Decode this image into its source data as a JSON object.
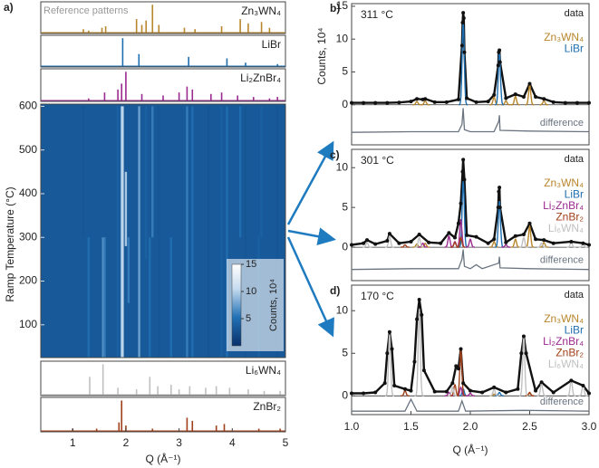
{
  "chart_data": [
    {
      "type": "stick",
      "panel": "a)",
      "subtitle": "Reference patterns",
      "name": "Zn₃WN₄",
      "color": "#b8862b",
      "xlim": [
        0.4,
        5
      ],
      "ylim": [
        0,
        1.1
      ],
      "x": [
        1.2,
        1.3,
        1.55,
        1.62,
        2.2,
        2.3,
        2.38,
        2.5,
        2.62,
        3.1,
        3.3,
        3.8,
        4.15,
        4.3,
        4.55,
        4.7
      ],
      "values": [
        0.15,
        0.1,
        0.2,
        0.25,
        0.5,
        0.3,
        0.45,
        1.0,
        0.3,
        0.2,
        0.15,
        0.25,
        0.5,
        0.35,
        0.4,
        0.2
      ]
    },
    {
      "type": "stick",
      "name": "LiBr",
      "color": "#1f6fb0",
      "xlim": [
        0.4,
        5
      ],
      "ylim": [
        0,
        1.1
      ],
      "x": [
        1.94,
        2.245,
        3.18,
        3.9,
        4.25,
        4.85
      ],
      "values": [
        1.0,
        0.45,
        0.35,
        0.3,
        0.15,
        0.1
      ]
    },
    {
      "type": "stick",
      "name": "Li₂ZnBr₄",
      "color": "#9b2a8f",
      "xlim": [
        0.4,
        5
      ],
      "ylim": [
        0,
        1.1
      ],
      "x": [
        1.3,
        1.6,
        1.85,
        1.92,
        2.0,
        2.3,
        2.7,
        3.0,
        3.15,
        3.25,
        3.6,
        3.8,
        4.1,
        4.4,
        4.7,
        4.85
      ],
      "values": [
        0.1,
        0.3,
        0.4,
        0.6,
        1.0,
        0.25,
        0.2,
        0.3,
        0.5,
        0.4,
        0.25,
        0.3,
        0.2,
        0.15,
        0.1,
        0.15
      ]
    },
    {
      "type": "heatmap",
      "ylabel": "Ramp Temperature (°C)",
      "xlim": [
        0.4,
        5
      ],
      "ylim": [
        25,
        605
      ],
      "yticks": [
        100,
        200,
        300,
        400,
        500,
        600
      ],
      "x": [
        1.2,
        1.3,
        1.57,
        1.6,
        1.85,
        1.92,
        1.94,
        2.0,
        2.05,
        2.25,
        2.38,
        2.45,
        2.5,
        2.62,
        2.85,
        3.15,
        3.25,
        3.55,
        3.8,
        3.9,
        4.15,
        4.25,
        4.5,
        4.55,
        4.85
      ],
      "t_start": [
        300,
        25,
        25,
        25,
        25,
        25,
        25,
        280,
        150,
        25,
        250,
        25,
        300,
        25,
        25,
        25,
        25,
        25,
        25,
        25,
        300,
        25,
        25,
        300,
        25
      ],
      "t_end": [
        600,
        300,
        300,
        300,
        600,
        600,
        600,
        450,
        300,
        600,
        600,
        300,
        600,
        600,
        300,
        600,
        600,
        600,
        600,
        600,
        600,
        600,
        300,
        600,
        600
      ],
      "values": [
        3,
        5,
        7,
        6,
        4,
        9,
        11,
        10,
        6,
        8,
        4,
        5,
        6,
        3,
        5,
        6,
        5,
        3,
        4,
        5,
        5,
        3,
        4,
        4,
        3
      ],
      "colorbar": {
        "label": "Counts, 10⁴",
        "lim": [
          0,
          15
        ],
        "ticks": [
          5,
          10,
          15
        ]
      }
    },
    {
      "type": "stick",
      "name": "Li₆WN₄",
      "color": "#c0c0c0",
      "xlim": [
        0.4,
        5
      ],
      "ylim": [
        0,
        1.1
      ],
      "x": [
        1.32,
        1.57,
        1.85,
        2.2,
        2.45,
        2.6,
        2.85,
        3.0,
        3.2,
        3.5,
        3.7,
        3.95,
        4.3,
        4.6,
        4.9
      ],
      "values": [
        0.6,
        1.0,
        0.25,
        0.2,
        0.6,
        0.3,
        0.35,
        0.2,
        0.3,
        0.25,
        0.3,
        0.25,
        0.2,
        0.15,
        0.15
      ]
    },
    {
      "type": "stick",
      "name": "ZnBr₂",
      "color": "#a0401a",
      "xlim": [
        0.4,
        5
      ],
      "ylim": [
        0,
        1.1
      ],
      "xlabel": "Q (Å⁻¹)",
      "xticks": [
        1,
        2,
        3,
        4,
        5
      ],
      "x": [
        1.0,
        1.45,
        1.87,
        1.92,
        2.0,
        2.5,
        3.15,
        3.25,
        3.7,
        3.85,
        4.5,
        4.9
      ],
      "values": [
        0.1,
        0.1,
        0.3,
        1.0,
        0.2,
        0.1,
        0.45,
        0.35,
        0.2,
        0.25,
        0.1,
        0.1
      ]
    },
    {
      "type": "pattern",
      "panel": "b)",
      "title": "311 °C",
      "ylabel": "Counts, 10⁴",
      "xlim": [
        1.0,
        3.0
      ],
      "ylim": [
        -6.1,
        15.4
      ],
      "yticks": [
        0,
        5,
        10,
        15
      ],
      "data": {
        "name": "data",
        "x": [
          1.0,
          1.1,
          1.2,
          1.3,
          1.4,
          1.5,
          1.55,
          1.6,
          1.62,
          1.7,
          1.8,
          1.9,
          1.93,
          1.935,
          1.94,
          1.945,
          1.95,
          1.97,
          2.05,
          2.15,
          2.2,
          2.235,
          2.24,
          2.245,
          2.25,
          2.3,
          2.38,
          2.45,
          2.5,
          2.55,
          2.62,
          2.7,
          2.8,
          2.9,
          3.0
        ],
        "values": [
          0.3,
          0.3,
          0.3,
          0.3,
          0.35,
          0.5,
          0.9,
          0.8,
          0.9,
          0.4,
          0.4,
          0.8,
          9.0,
          12.5,
          14.0,
          13.2,
          8.0,
          1.0,
          0.4,
          0.5,
          1.5,
          6.0,
          8.0,
          8.3,
          6.5,
          1.0,
          1.6,
          1.2,
          3.2,
          1.2,
          0.9,
          0.4,
          0.3,
          0.3,
          0.3
        ]
      },
      "series": [
        {
          "name": "Zn₃WN₄",
          "color": "#b8862b",
          "x": [
            1.55,
            1.62,
            2.2,
            2.3,
            2.38,
            2.5,
            2.62
          ],
          "values": [
            0.5,
            0.6,
            1.2,
            0.6,
            1.3,
            3.0,
            0.6
          ]
        },
        {
          "name": "LiBr",
          "color": "#1f6fb0",
          "x": [
            1.94,
            2.245
          ],
          "values": [
            12.5,
            8.0
          ]
        }
      ],
      "difference": {
        "name": "difference",
        "x": [
          1.0,
          1.5,
          1.9,
          1.93,
          1.94,
          1.95,
          2.0,
          2.2,
          2.24,
          2.245,
          2.25,
          2.5,
          3.0
        ],
        "values": [
          -4.2,
          -4.1,
          -4.1,
          -3.0,
          -0.5,
          -3.8,
          -4.1,
          -4.1,
          -2.5,
          -1.6,
          -3.9,
          -4.0,
          -4.1
        ]
      }
    },
    {
      "type": "pattern",
      "panel": "c)",
      "title": "301 °C",
      "xlim": [
        1.0,
        3.0
      ],
      "ylim": [
        -4.2,
        12.3
      ],
      "yticks": [
        0,
        5,
        10
      ],
      "data": {
        "name": "data",
        "x": [
          1.0,
          1.1,
          1.13,
          1.2,
          1.3,
          1.32,
          1.4,
          1.5,
          1.57,
          1.65,
          1.75,
          1.82,
          1.87,
          1.9,
          1.92,
          1.935,
          1.94,
          1.95,
          1.97,
          2.05,
          2.15,
          2.2,
          2.235,
          2.24,
          2.245,
          2.25,
          2.3,
          2.38,
          2.45,
          2.5,
          2.55,
          2.62,
          2.7,
          2.85,
          2.95,
          3.0
        ],
        "values": [
          0.3,
          0.5,
          0.9,
          0.4,
          0.8,
          1.7,
          0.5,
          0.7,
          1.6,
          0.6,
          0.5,
          1.8,
          1.2,
          3.0,
          5.5,
          9.5,
          11.0,
          8.5,
          1.5,
          1.3,
          0.5,
          1.0,
          5.0,
          7.0,
          7.5,
          5.0,
          0.6,
          1.4,
          1.6,
          3.0,
          1.0,
          0.9,
          0.5,
          0.7,
          0.5,
          0.3
        ]
      },
      "series": [
        {
          "name": "Zn₃WN₄",
          "color": "#b8862b",
          "x": [
            1.55,
            1.62,
            2.2,
            2.38,
            2.5,
            2.62
          ],
          "values": [
            0.4,
            0.5,
            0.7,
            1.0,
            2.6,
            0.6
          ]
        },
        {
          "name": "LiBr",
          "color": "#1f6fb0",
          "x": [
            1.94,
            2.245
          ],
          "values": [
            8.3,
            5.8
          ]
        },
        {
          "name": "Li₂ZnBr₄",
          "color": "#9b2a8f",
          "x": [
            1.6,
            1.82,
            1.87,
            1.92,
            2.0,
            2.3
          ],
          "values": [
            0.5,
            1.4,
            0.7,
            3.5,
            1.0,
            0.3
          ]
        },
        {
          "name": "ZnBr₂",
          "color": "#a0401a",
          "x": [
            1.45,
            1.87,
            1.92
          ],
          "values": [
            0.3,
            0.6,
            1.2
          ]
        },
        {
          "name": "Li₆WN₄",
          "color": "#c0c0c0",
          "x": [
            1.13,
            1.32,
            1.57,
            2.45,
            2.6,
            2.85,
            2.95
          ],
          "values": [
            0.6,
            1.4,
            1.2,
            1.2,
            0.5,
            0.6,
            0.4
          ]
        }
      ],
      "difference": {
        "name": "difference",
        "x": [
          1.0,
          1.5,
          1.9,
          1.93,
          1.94,
          1.95,
          2.0,
          2.05,
          2.1,
          2.24,
          2.245,
          2.25,
          2.5,
          3.0
        ],
        "values": [
          -2.8,
          -2.7,
          -2.7,
          -1.5,
          -0.3,
          -2.4,
          -2.7,
          -2.2,
          -2.7,
          -2.0,
          -1.2,
          -2.6,
          -2.7,
          -2.8
        ]
      }
    },
    {
      "type": "pattern",
      "panel": "d)",
      "title": "170 °C",
      "xlim": [
        1.0,
        3.0
      ],
      "ylim": [
        -2.2,
        13
      ],
      "yticks": [
        0,
        5,
        10
      ],
      "xlabel": "Q (Å⁻¹)",
      "xticks": [
        {
          "value": 1,
          "label": "1.0"
        },
        1.5,
        {
          "value": 2,
          "label": "2.0"
        },
        2.5,
        {
          "value": 3,
          "label": "3.0"
        }
      ],
      "data": {
        "name": "data",
        "x": [
          1.0,
          1.1,
          1.2,
          1.28,
          1.3,
          1.32,
          1.34,
          1.36,
          1.45,
          1.5,
          1.53,
          1.55,
          1.57,
          1.59,
          1.61,
          1.7,
          1.8,
          1.85,
          1.88,
          1.9,
          1.92,
          1.94,
          2.0,
          2.1,
          2.2,
          2.3,
          2.4,
          2.43,
          2.45,
          2.47,
          2.55,
          2.6,
          2.7,
          2.85,
          2.95,
          3.0
        ],
        "values": [
          0.3,
          0.3,
          0.4,
          1.5,
          5.0,
          7.5,
          5.5,
          1.2,
          0.8,
          0.6,
          4.0,
          9.0,
          11.3,
          9.5,
          3.0,
          0.5,
          0.5,
          1.5,
          3.5,
          3.2,
          5.5,
          1.5,
          0.6,
          0.4,
          1.0,
          0.4,
          0.8,
          5.0,
          7.0,
          5.0,
          0.6,
          1.6,
          0.4,
          1.8,
          1.2,
          0.3
        ]
      },
      "series": [
        {
          "name": "Zn₃WN₄",
          "color": "#b8862b",
          "x": [
            2.2,
            2.5
          ],
          "values": [
            0.2,
            0.3
          ]
        },
        {
          "name": "LiBr",
          "color": "#1f6fb0",
          "x": [
            1.94,
            2.245
          ],
          "values": [
            0.8,
            0.4
          ]
        },
        {
          "name": "Li₂ZnBr₄",
          "color": "#9b2a8f",
          "x": [
            1.82,
            1.92,
            2.0
          ],
          "values": [
            0.4,
            1.0,
            0.3
          ]
        },
        {
          "name": "ZnBr₂",
          "color": "#a0401a",
          "x": [
            1.45,
            1.87,
            1.92,
            2.5
          ],
          "values": [
            0.6,
            1.3,
            5.5,
            0.4
          ]
        },
        {
          "name": "Li₆WN₄",
          "color": "#c0c0c0",
          "x": [
            1.32,
            1.57,
            1.85,
            2.2,
            2.45,
            2.6,
            2.85,
            2.95
          ],
          "values": [
            7.2,
            10.2,
            1.0,
            0.8,
            6.8,
            1.5,
            1.8,
            1.2
          ]
        }
      ],
      "difference": {
        "name": "difference",
        "x": [
          1.0,
          1.45,
          1.5,
          1.55,
          1.9,
          1.93,
          1.96,
          2.45,
          3.0
        ],
        "values": [
          -1.8,
          -1.8,
          -0.4,
          -1.8,
          -1.8,
          -0.6,
          -1.8,
          -1.7,
          -1.8
        ]
      }
    }
  ]
}
